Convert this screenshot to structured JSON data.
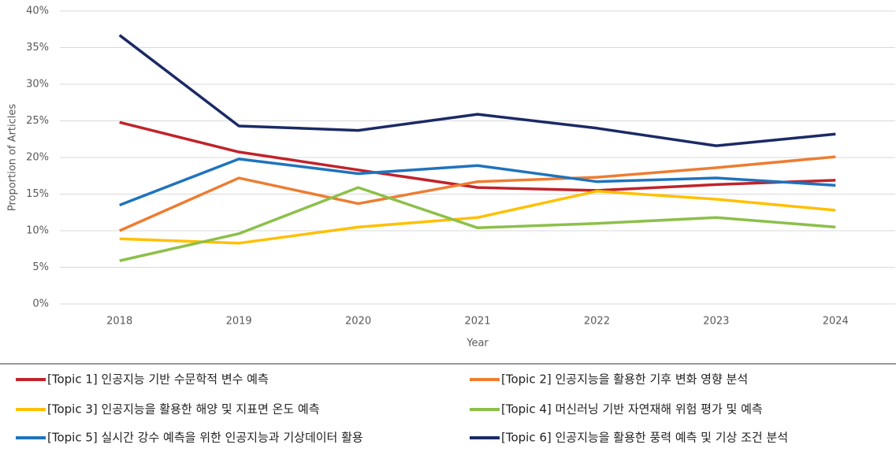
{
  "chart_data": {
    "type": "line",
    "x_label": "Year",
    "y_label": "Proportion of Articles",
    "categories": [
      "2018",
      "2019",
      "2020",
      "2021",
      "2022",
      "2023",
      "2024"
    ],
    "series": [
      {
        "name": "[Topic 1] 인공지능 기반 수문학적 변수 예측",
        "color": "#c0232a",
        "values": [
          24.8,
          20.75,
          18.3,
          15.9,
          15.5,
          16.3,
          16.9
        ]
      },
      {
        "name": "[Topic 2] 인공지능을 활용한 기후 변화 영향 분석",
        "color": "#ed7d31",
        "values": [
          10.0,
          17.2,
          13.7,
          16.7,
          17.3,
          18.6,
          20.1
        ]
      },
      {
        "name": "[Topic 3] 인공지능을 활용한 해양 및 지표면 온도 예측",
        "color": "#ffc000",
        "values": [
          8.9,
          8.3,
          10.5,
          11.8,
          15.4,
          14.3,
          12.8
        ]
      },
      {
        "name": "[Topic 4] 머신러닝 기반 자연재해 위험 평가 및 예측",
        "color": "#8cc04a",
        "values": [
          5.9,
          9.6,
          15.9,
          10.4,
          11.0,
          11.8,
          10.5
        ]
      },
      {
        "name": "[Topic 5] 실시간 강수 예측을 위한 인공지능과 기상데이터 활용",
        "color": "#1f73bd",
        "values": [
          13.5,
          19.8,
          17.8,
          18.9,
          16.7,
          17.2,
          16.2
        ]
      },
      {
        "name": "[Topic 6] 인공지능을 활용한 풍력 예측 및 기상 조건 분석",
        "color": "#1b2a66",
        "values": [
          36.7,
          24.3,
          23.7,
          25.9,
          24.0,
          21.6,
          23.2
        ]
      }
    ],
    "ylim": [
      0,
      40
    ],
    "yticks": [
      {
        "value": 0,
        "label": "0%"
      },
      {
        "value": 5,
        "label": "5%"
      },
      {
        "value": 10,
        "label": "10%"
      },
      {
        "value": 15,
        "label": "15%"
      },
      {
        "value": 20,
        "label": "20%"
      },
      {
        "value": 25,
        "label": "25%"
      },
      {
        "value": 30,
        "label": "30%"
      },
      {
        "value": 35,
        "label": "35%"
      },
      {
        "value": 40,
        "label": "40%"
      }
    ],
    "grid": true,
    "legend": "bottom"
  }
}
